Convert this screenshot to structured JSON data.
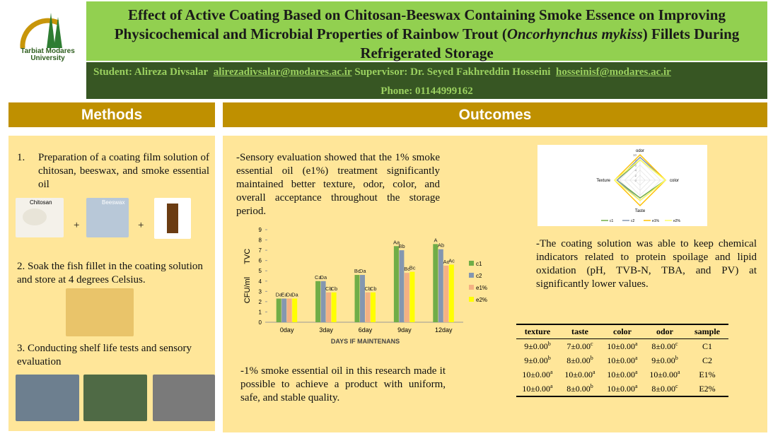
{
  "header": {
    "title": [
      "Effect of Active Coating Based on Chitosan-Beeswax Containing Smoke Essence on Improving Physicochemical and Microbial Properties of Rainbow Trout (",
      "Oncorhynchus mykiss",
      ") Fillets During Refrigerated Storage"
    ],
    "logo_text": [
      "Tarbiat Modares",
      "University"
    ]
  },
  "contact": {
    "student": "Student: Alireza Divsalar",
    "student_email": "alirezadivsalar@modares.ac.ir",
    "supervisor": "Supervisor: Dr. Seyed Fakhreddin Hosseini",
    "supervisor_email": "hosseinisf@modares.ac.ir",
    "phone": "Phone: 01144999162"
  },
  "methods": {
    "heading": "Methods",
    "step1_number": "1.",
    "step1": "Preparation of a coating film solution of chitosan, beeswax, and smoke essential oil",
    "image_labels": [
      "Chitosan",
      "Beeswax"
    ],
    "plus": "+",
    "step2": "2. Soak the fish fillet in the coating solution and store at 4 degrees Celsius.",
    "step3": "3. Conducting shelf life tests and sensory evaluation"
  },
  "outcomes": {
    "heading": "Outcomes",
    "sensory": "-Sensory evaluation showed that the 1% smoke essential oil (e1%) treatment significantly maintained better texture, odor, color, and overall acceptance throughout the storage period.",
    "conclusion": "-1% smoke essential oil in this research made it possible to achieve a product with uniform, safe, and stable quality.",
    "chemical": "-The coating solution was able to keep chemical indicators related to protein spoilage and lipid oxidation (pH, TVB-N, TBA, and PV) at significantly lower values."
  },
  "chart_data": [
    {
      "type": "bar",
      "ylabel": "CFU/ml      TVC",
      "xlabel": "DAYS IF MAINTENANS",
      "categories": [
        "0day",
        "3day",
        "6day",
        "9day",
        "12day"
      ],
      "ylim": [
        0,
        9
      ],
      "yticks": [
        0,
        1,
        2,
        3,
        4,
        5,
        6,
        7,
        8,
        9
      ],
      "series": [
        {
          "name": "c1",
          "color": "#70ad47",
          "values": [
            2.3,
            4.0,
            4.6,
            7.4,
            7.6
          ],
          "letters": [
            "Da",
            "Ca",
            "Bc",
            "Aa",
            "A"
          ]
        },
        {
          "name": "c2",
          "color": "#8497b0",
          "values": [
            2.3,
            4.0,
            4.6,
            7.0,
            7.1
          ],
          "letters": [
            "Ea",
            "Da",
            "Da",
            "Bb",
            "Ab"
          ]
        },
        {
          "name": "e1%",
          "color": "#f4b183",
          "values": [
            2.3,
            2.9,
            2.9,
            4.8,
            5.5
          ],
          "letters": [
            "Da",
            "Cb",
            "Cb",
            "Bc",
            "Ac"
          ]
        },
        {
          "name": "e2%",
          "color": "#ffff00",
          "values": [
            2.3,
            2.9,
            2.9,
            4.9,
            5.6
          ],
          "letters": [
            "Da",
            "Cb",
            "Cb",
            "Bc",
            "Ac"
          ]
        }
      ]
    },
    {
      "type": "radar",
      "axes": [
        "odor",
        "color",
        "Taste",
        "Texture"
      ],
      "rlim": [
        0,
        10
      ],
      "rticks": [
        0,
        2,
        4,
        6,
        8,
        10
      ],
      "series": [
        {
          "name": "c1",
          "color": "#70ad47",
          "values": [
            8,
            10,
            7,
            9
          ]
        },
        {
          "name": "c2",
          "color": "#8497b0",
          "values": [
            9,
            10,
            8,
            9
          ]
        },
        {
          "name": "e1%",
          "color": "#ffc000",
          "values": [
            10,
            10,
            10,
            10
          ]
        },
        {
          "name": "e2%",
          "color": "#ffff66",
          "values": [
            8,
            10,
            8,
            10
          ]
        }
      ]
    }
  ],
  "table": {
    "columns": [
      "texture",
      "taste",
      "color",
      "odor",
      "sample"
    ],
    "rows": [
      [
        {
          "text": "9±0.00",
          "sup": "b"
        },
        {
          "text": "7±0.00",
          "sup": "c"
        },
        {
          "text": "10±0.00",
          "sup": "a"
        },
        {
          "text": "8±0.00",
          "sup": "c"
        },
        "C1"
      ],
      [
        {
          "text": "9±0.00",
          "sup": "b"
        },
        {
          "text": "8±0.00",
          "sup": "b"
        },
        {
          "text": "10±0.00",
          "sup": "a"
        },
        {
          "text": "9±0.00",
          "sup": "b"
        },
        "C2"
      ],
      [
        {
          "text": "10±0.00",
          "sup": "a"
        },
        {
          "text": "10±0.00",
          "sup": "a"
        },
        {
          "text": "10±0.00",
          "sup": "a"
        },
        {
          "text": "10±0.00",
          "sup": "a"
        },
        "E1%"
      ],
      [
        {
          "text": "10±0.00",
          "sup": "a"
        },
        {
          "text": "8±0.00",
          "sup": "b"
        },
        {
          "text": "10±0.00",
          "sup": "a"
        },
        {
          "text": "8±0.00",
          "sup": "c"
        },
        "E2%"
      ]
    ]
  }
}
